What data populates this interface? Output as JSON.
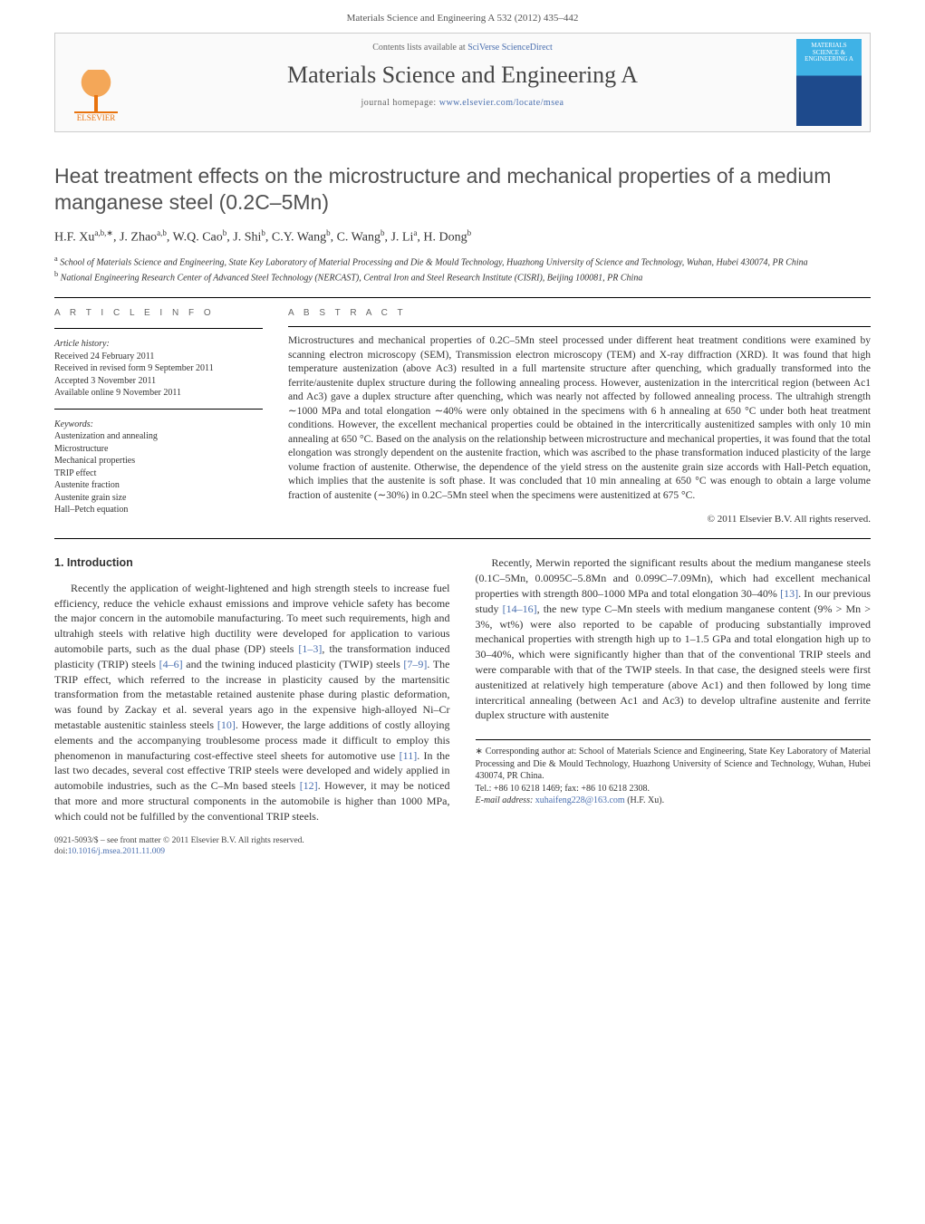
{
  "header": {
    "running_head": "Materials Science and Engineering A 532 (2012) 435–442",
    "contents_line_prefix": "Contents lists available at ",
    "contents_link_text": "SciVerse ScienceDirect",
    "journal_name": "Materials Science and Engineering A",
    "homepage_prefix": "journal homepage: ",
    "homepage_link": "www.elsevier.com/locate/msea",
    "publisher_logo_text": "ELSEVIER",
    "cover_text": "MATERIALS SCIENCE & ENGINEERING A"
  },
  "article": {
    "title": "Heat treatment effects on the microstructure and mechanical properties of a medium manganese steel (0.2C–5Mn)",
    "authors_html": "H.F. Xu<sup>a,b,∗</sup>, J. Zhao<sup>a,b</sup>, W.Q. Cao<sup>b</sup>, J. Shi<sup>b</sup>, C.Y. Wang<sup>b</sup>, C. Wang<sup>b</sup>, J. Li<sup>a</sup>, H. Dong<sup>b</sup>",
    "affiliations": {
      "a": "School of Materials Science and Engineering, State Key Laboratory of Material Processing and Die & Mould Technology, Huazhong University of Science and Technology, Wuhan, Hubei 430074, PR China",
      "b": "National Engineering Research Center of Advanced Steel Technology (NERCAST), Central Iron and Steel Research Institute (CISRI), Beijing 100081, PR China"
    }
  },
  "info": {
    "heading": "A R T I C L E   I N F O",
    "history_label": "Article history:",
    "history": [
      "Received 24 February 2011",
      "Received in revised form 9 September 2011",
      "Accepted 3 November 2011",
      "Available online 9 November 2011"
    ],
    "keywords_label": "Keywords:",
    "keywords": [
      "Austenization and annealing",
      "Microstructure",
      "Mechanical properties",
      "TRIP effect",
      "Austenite fraction",
      "Austenite grain size",
      "Hall–Petch equation"
    ]
  },
  "abstract": {
    "heading": "A B S T R A C T",
    "text": "Microstructures and mechanical properties of 0.2C–5Mn steel processed under different heat treatment conditions were examined by scanning electron microscopy (SEM), Transmission electron microscopy (TEM) and X-ray diffraction (XRD). It was found that high temperature austenization (above Ac3) resulted in a full martensite structure after quenching, which gradually transformed into the ferrite/austenite duplex structure during the following annealing process. However, austenization in the intercritical region (between Ac1 and Ac3) gave a duplex structure after quenching, which was nearly not affected by followed annealing process. The ultrahigh strength ∼1000 MPa and total elongation ∼40% were only obtained in the specimens with 6 h annealing at 650 °C under both heat treatment conditions. However, the excellent mechanical properties could be obtained in the intercritically austenitized samples with only 10 min annealing at 650 °C. Based on the analysis on the relationship between microstructure and mechanical properties, it was found that the total elongation was strongly dependent on the austenite fraction, which was ascribed to the phase transformation induced plasticity of the large volume fraction of austenite. Otherwise, the dependence of the yield stress on the austenite grain size accords with Hall-Petch equation, which implies that the austenite is soft phase. It was concluded that 10 min annealing at 650 °C was enough to obtain a large volume fraction of austenite (∼30%) in 0.2C–5Mn steel when the specimens were austenitized at 675 °C.",
    "copyright": "© 2011 Elsevier B.V. All rights reserved."
  },
  "body": {
    "section_heading": "1.  Introduction",
    "para1_a": "Recently the application of weight-lightened and high strength steels to increase fuel efficiency, reduce the vehicle exhaust emissions and improve vehicle safety has become the major concern in the automobile manufacturing. To meet such requirements, high and ultrahigh steels with relative high ductility were developed for application to various automobile parts, such as the dual phase (DP) steels ",
    "ref1": "[1–3]",
    "para1_b": ", the transformation induced plasticity (TRIP) steels ",
    "ref2": "[4–6]",
    "para1_c": " and the twining induced plasticity (TWIP) steels ",
    "ref3": "[7–9]",
    "para1_d": ". The TRIP effect, which referred to the increase in plasticity caused by the martensitic transformation from the metastable retained austenite phase during plastic deformation, was found by Zackay et al. several years ago in the expensive high-alloyed Ni–Cr metastable austenitic stainless steels ",
    "ref4": "[10]",
    "para1_e": ". However, the large additions of costly alloying",
    "para2_a": "elements and the accompanying troublesome process made it difficult to employ this phenomenon in manufacturing cost-effective steel sheets for automotive use ",
    "ref5": "[11]",
    "para2_b": ". In the last two decades, several cost effective TRIP steels were developed and widely applied in automobile industries, such as the C–Mn based steels ",
    "ref6": "[12]",
    "para2_c": ". However, it may be noticed that more and more structural components in the automobile is higher than 1000 MPa, which could not be fulfilled by the conventional TRIP steels.",
    "para3_a": "Recently, Merwin reported the significant results about the medium manganese steels (0.1C–5Mn, 0.0095C–5.8Mn and 0.099C–7.09Mn), which had excellent mechanical properties with strength 800–1000 MPa and total elongation 30–40% ",
    "ref7": "[13]",
    "para3_b": ". In our previous study ",
    "ref8": "[14–16]",
    "para3_c": ", the new type C–Mn steels with medium manganese content (9% > Mn > 3%, wt%) were also reported to be capable of producing substantially improved mechanical properties with strength high up to 1–1.5 GPa and total elongation high up to 30–40%, which were significantly higher than that of the conventional TRIP steels and were comparable with that of the TWIP steels. In that case, the designed steels were first austenitized at relatively high temperature (above Ac1) and then followed by long time intercritical annealing (between Ac1 and Ac3) to develop ultrafine austenite and ferrite duplex structure with austenite"
  },
  "footnote": {
    "corr_label": "∗",
    "corr_text": "Corresponding author at: School of Materials Science and Engineering, State Key Laboratory of Material Processing and Die & Mould Technology, Huazhong University of Science and Technology, Wuhan, Hubei 430074, PR China.",
    "tel": "Tel.: +86 10 6218 1469; fax: +86 10 6218 2308.",
    "email_label": "E-mail address:",
    "email": "xuhaifeng228@163.com",
    "email_suffix": "(H.F. Xu)."
  },
  "footer": {
    "line1": "0921-5093/$ – see front matter © 2011 Elsevier B.V. All rights reserved.",
    "doi_label": "doi:",
    "doi": "10.1016/j.msea.2011.11.009"
  },
  "colors": {
    "link": "#4a6faf",
    "publisher": "#e8730e",
    "text": "#333333"
  }
}
